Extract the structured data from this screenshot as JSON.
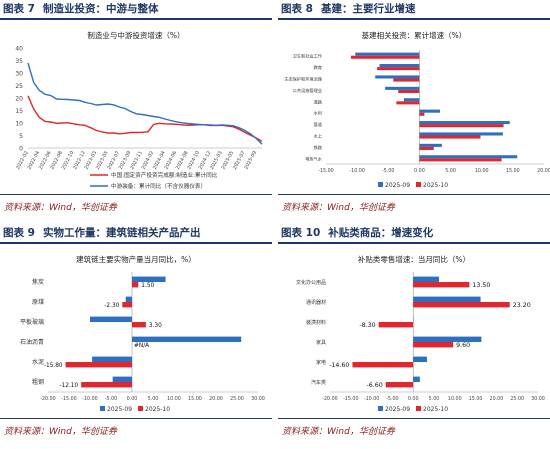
{
  "colors": {
    "blue": "#2f6fbf",
    "red": "#e0262e",
    "title": "#1f3864",
    "source": "#8b1a1a"
  },
  "panels": [
    {
      "fig_label": "图表 7",
      "fig_title": "制造业投资：中游与整体",
      "source": "资料来源：Wind，华创证券",
      "chart_data": {
        "type": "line",
        "title": "制造业与中游投资增速（%）",
        "x": [
          "2022-02",
          "2022-03",
          "2022-04",
          "2022-05",
          "2022-06",
          "2022-07",
          "2022-08",
          "2022-09",
          "2022-10",
          "2022-11",
          "2022-12",
          "2023-02",
          "2023-03",
          "2023-04",
          "2023-05",
          "2023-06",
          "2023-07",
          "2023-08",
          "2023-09",
          "2023-10",
          "2023-11",
          "2023-12",
          "2024-02",
          "2024-03",
          "2024-04",
          "2024-05",
          "2024-06",
          "2024-07",
          "2024-08",
          "2024-09",
          "2024-10",
          "2024-11",
          "2024-12",
          "2025-02",
          "2025-03",
          "2025-04",
          "2025-05",
          "2025-06",
          "2025-07",
          "2025-08",
          "2025-09",
          "2025-10"
        ],
        "x_tick_labels": [
          "2022-02",
          "2022-04",
          "2022-06",
          "2022-08",
          "2022-10",
          "2022-12",
          "2023-03",
          "2023-05",
          "2023-07",
          "2023-09",
          "2023-11",
          "2024-02",
          "2024-04",
          "2024-06",
          "2024-08",
          "2024-10",
          "2024-12",
          "2025-03",
          "2025-05",
          "2025-07",
          "2025-09"
        ],
        "ylim": [
          0,
          40
        ],
        "yticks": [
          0,
          5,
          10,
          15,
          20,
          25,
          30,
          35,
          40
        ],
        "legend_position": "bottom",
        "series": [
          {
            "name": "中国:固定资产投资完成额:制造业:累计同比",
            "color": "#e0262e",
            "values": [
              20.9,
              15.6,
              12.2,
              10.6,
              10.4,
              9.9,
              10.0,
              10.1,
              9.7,
              9.3,
              9.1,
              8.1,
              7.0,
              6.4,
              6.0,
              6.0,
              5.7,
              5.9,
              6.2,
              6.2,
              6.3,
              6.5,
              9.4,
              9.9,
              9.7,
              9.6,
              9.5,
              9.3,
              9.1,
              9.2,
              9.3,
              9.3,
              9.2,
              9.0,
              9.1,
              8.8,
              8.5,
              7.5,
              6.2,
              5.1,
              4.0,
              2.7
            ]
          },
          {
            "name": "中游装备：累计同比（不含仪器仪表）",
            "color": "#2f6fbf",
            "values": [
              34.0,
              26.2,
              23.0,
              21.5,
              21.0,
              19.6,
              19.5,
              19.4,
              19.2,
              19.0,
              18.3,
              17.8,
              17.2,
              17.4,
              17.6,
              17.3,
              16.4,
              15.8,
              14.6,
              13.7,
              13.4,
              13.0,
              12.6,
              12.3,
              11.6,
              11.0,
              10.5,
              10.1,
              9.8,
              9.6,
              9.4,
              9.3,
              9.0,
              9.1,
              9.2,
              9.1,
              8.9,
              8.1,
              7.0,
              5.6,
              3.8,
              1.5
            ]
          }
        ]
      }
    },
    {
      "fig_label": "图表 8",
      "fig_title": "基建：主要行业增速",
      "source": "资料来源：Wind，华创证券",
      "chart_data": {
        "type": "bar",
        "orientation": "horizontal",
        "title": "基建相关投资：累计增速（%）",
        "categories": [
          "卫生和社会工作",
          "教育",
          "生态保护和环境治理",
          "公共设施管理业",
          "道路",
          "水利",
          "管道",
          "水上",
          "铁路",
          "电热气水"
        ],
        "xlim": [
          -15,
          20
        ],
        "xticks": [
          -15,
          -10,
          -5,
          0,
          5,
          10,
          15,
          20
        ],
        "x_tick_labels": [
          "-15.00",
          "-10.00",
          "-5.00",
          "0.00",
          "5.00",
          "10.00",
          "15.00",
          "20.00"
        ],
        "legend_position": "bottom",
        "series": [
          {
            "name": "2025-09",
            "color": "#2f6fbf",
            "values": [
              -10.3,
              -6.4,
              -7.1,
              -5.5,
              -2.5,
              3.3,
              14.5,
              13.4,
              3.6,
              15.7
            ]
          },
          {
            "name": "2025-10",
            "color": "#e0262e",
            "values": [
              -11.0,
              -6.8,
              -4.2,
              -3.4,
              -3.7,
              0.8,
              13.5,
              9.8,
              2.3,
              13.2
            ]
          }
        ]
      }
    },
    {
      "fig_label": "图表 9",
      "fig_title": "实物工作量：建筑链相关产品产出",
      "source": "资料来源：Wind，华创证券",
      "chart_data": {
        "type": "bar",
        "orientation": "horizontal",
        "title": "建筑链主要实物产量当月同比，%）",
        "categories": [
          "焦炭",
          "原煤",
          "平板玻璃",
          "石油沥青",
          "水泥",
          "粗钢"
        ],
        "xlim": [
          -20,
          30
        ],
        "xticks": [
          -20,
          -15,
          -10,
          -5,
          0,
          5,
          10,
          15,
          20,
          25,
          30
        ],
        "x_tick_labels": [
          "-20.00",
          "-15.00",
          "-10.00",
          "-5.00",
          "0.00",
          "5.00",
          "10.00",
          "15.00",
          "20.00",
          "25.00",
          "30.00"
        ],
        "legend_position": "bottom",
        "series": [
          {
            "name": "2025-09",
            "color": "#2f6fbf",
            "values": [
              8.0,
              -1.5,
              -10.0,
              26.0,
              -9.5,
              -4.6
            ]
          },
          {
            "name": "2025-10",
            "color": "#e0262e",
            "values": [
              1.5,
              -2.3,
              3.3,
              null,
              -15.8,
              -12.1
            ]
          }
        ],
        "data_labels": [
          "1.50",
          "-2.30",
          "3.30",
          "#N/A",
          "-15.80",
          "-12.10"
        ]
      }
    },
    {
      "fig_label": "图表 10",
      "fig_title": "补贴类商品：增速变化",
      "source": "资料来源：Wind，华创证券",
      "chart_data": {
        "type": "bar",
        "orientation": "horizontal",
        "title": "补贴类零售增速：当月同比（%）",
        "categories": [
          "文化办公用品",
          "通讯器材",
          "装潢材料",
          "家具",
          "家电",
          "汽车类"
        ],
        "xlim": [
          -20,
          30
        ],
        "xticks": [
          -20,
          -15,
          -10,
          -5,
          0,
          5,
          10,
          15,
          20,
          25,
          30
        ],
        "x_tick_labels": [
          "-20.00",
          "-15.00",
          "-10.00",
          "-5.00",
          "0.00",
          "5.00",
          "10.00",
          "15.00",
          "20.00",
          "25.00",
          "30.00"
        ],
        "legend_position": "bottom",
        "series": [
          {
            "name": "2025-09",
            "color": "#2f6fbf",
            "values": [
              6.2,
              16.2,
              0.0,
              16.4,
              3.3,
              1.6
            ]
          },
          {
            "name": "2025-10",
            "color": "#e0262e",
            "values": [
              13.5,
              23.2,
              -8.3,
              9.6,
              -14.6,
              -6.6
            ]
          }
        ],
        "data_labels": [
          "13.50",
          "23.20",
          "-8.30",
          "9.60",
          "-14.60",
          "-6.60"
        ]
      }
    }
  ]
}
